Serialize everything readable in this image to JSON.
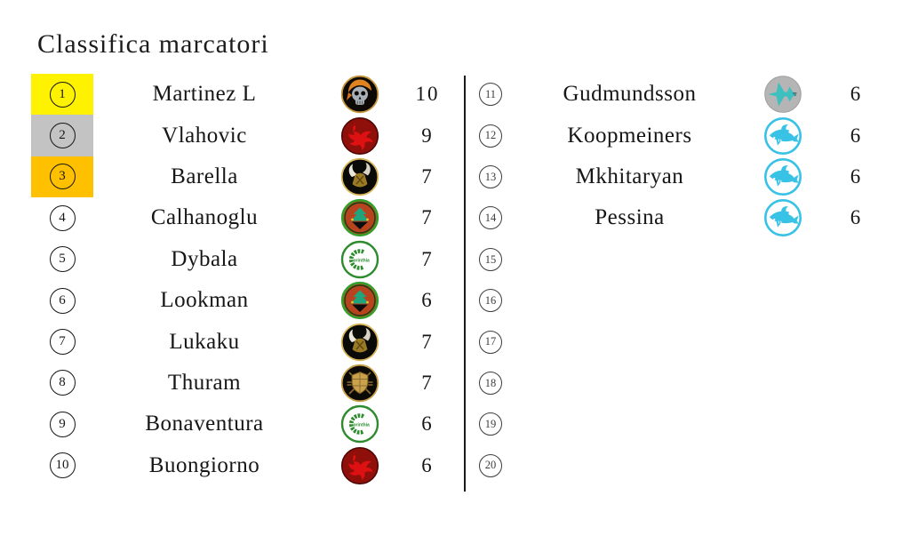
{
  "title": "Classifica marcatori",
  "colors": {
    "highlight_1st": "#FFF200",
    "highlight_2nd": "#C3C3C3",
    "highlight_3rd": "#FFC000",
    "divider": "#1A1A1A",
    "cyan_accent": "#38C2E6",
    "teal_accent": "#3FC0BF",
    "red_accent": "#DD1111",
    "gold_accent": "#C9A24B",
    "green_accent": "#2E8B2E"
  },
  "badges": {
    "skull": "black circle, gold ring, gray skull with orange bandana",
    "dragon": "dark red circle with bright red dragon",
    "viking": "black circle, gold ring, white viking horns",
    "forest": "green ring, red-orange field, teal creature",
    "corinthia": "white circle, green ring, green wreath C and word orinthia",
    "shield": "black circle, gold ring, gold shield with crossed spears",
    "shark-gray": "gray circle with teal jet-shark",
    "shark-cyan": "white circle, cyan ring, cyan shark"
  },
  "left_rows": [
    {
      "rank": "1",
      "name": "Martinez L",
      "badge": "skull",
      "score": "10",
      "highlight": "#FFF200"
    },
    {
      "rank": "2",
      "name": "Vlahovic",
      "badge": "dragon",
      "score": "9",
      "highlight": "#C3C3C3"
    },
    {
      "rank": "3",
      "name": "Barella",
      "badge": "viking",
      "score": "7",
      "highlight": "#FFC000"
    },
    {
      "rank": "4",
      "name": "Calhanoglu",
      "badge": "forest",
      "score": "7",
      "highlight": ""
    },
    {
      "rank": "5",
      "name": "Dybala",
      "badge": "corinthia",
      "score": "7",
      "highlight": ""
    },
    {
      "rank": "6",
      "name": "Lookman",
      "badge": "forest",
      "score": "6",
      "highlight": ""
    },
    {
      "rank": "7",
      "name": "Lukaku",
      "badge": "viking",
      "score": "7",
      "highlight": ""
    },
    {
      "rank": "8",
      "name": "Thuram",
      "badge": "shield",
      "score": "7",
      "highlight": ""
    },
    {
      "rank": "9",
      "name": "Bonaventura",
      "badge": "corinthia",
      "score": "6",
      "highlight": ""
    },
    {
      "rank": "10",
      "name": "Buongiorno",
      "badge": "dragon",
      "score": "6",
      "highlight": ""
    }
  ],
  "right_rows": [
    {
      "rank": "11",
      "name": "Gudmundsson",
      "badge": "shark-gray",
      "score": "6"
    },
    {
      "rank": "12",
      "name": "Koopmeiners",
      "badge": "shark-cyan",
      "score": "6"
    },
    {
      "rank": "13",
      "name": "Mkhitaryan",
      "badge": "shark-cyan",
      "score": "6"
    },
    {
      "rank": "14",
      "name": "Pessina",
      "badge": "shark-cyan",
      "score": "6"
    },
    {
      "rank": "15",
      "name": "",
      "badge": "",
      "score": ""
    },
    {
      "rank": "16",
      "name": "",
      "badge": "",
      "score": ""
    },
    {
      "rank": "17",
      "name": "",
      "badge": "",
      "score": ""
    },
    {
      "rank": "18",
      "name": "",
      "badge": "",
      "score": ""
    },
    {
      "rank": "19",
      "name": "",
      "badge": "",
      "score": ""
    },
    {
      "rank": "20",
      "name": "",
      "badge": "",
      "score": ""
    }
  ]
}
